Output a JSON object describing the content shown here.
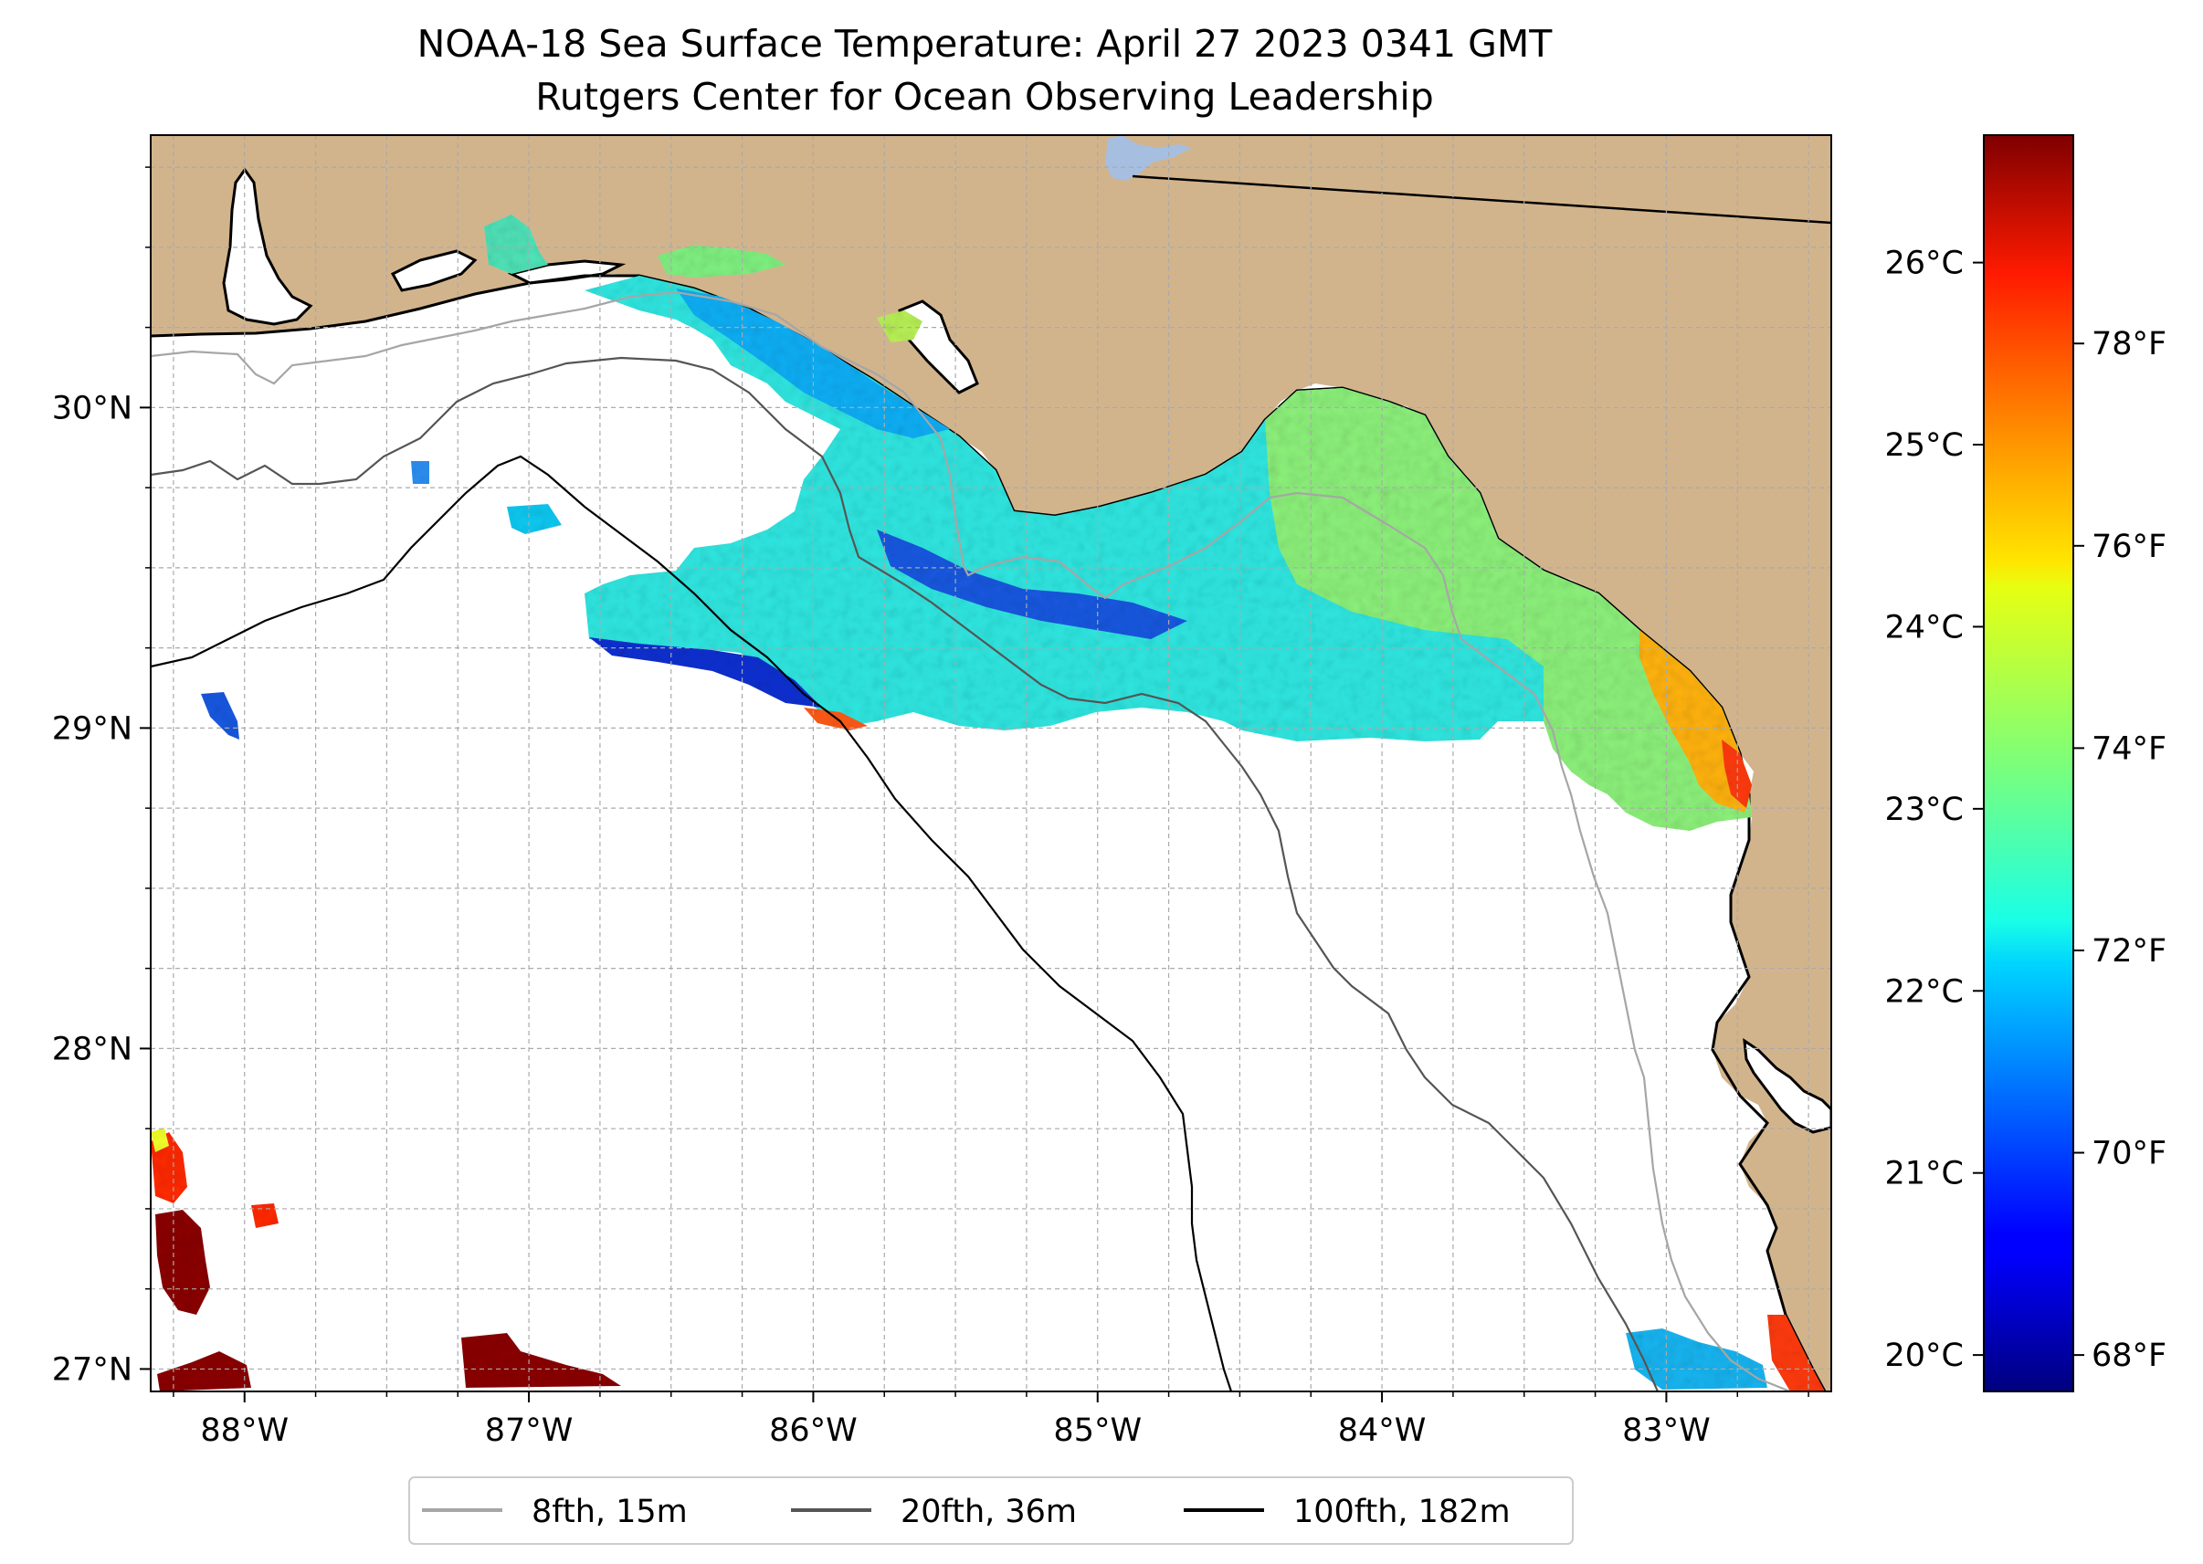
{
  "title": {
    "line1": "NOAA-18 Sea Surface Temperature: April 27 2023 0341 GMT",
    "line2": "Rutgers Center for Ocean Observing Leadership"
  },
  "map": {
    "lon_range": [
      -88.33,
      -82.42
    ],
    "lat_range": [
      26.93,
      30.85
    ],
    "lon_ticks": [
      {
        "value": -88,
        "label": "88°W"
      },
      {
        "value": -87,
        "label": "87°W"
      },
      {
        "value": -86,
        "label": "86°W"
      },
      {
        "value": -85,
        "label": "85°W"
      },
      {
        "value": -84,
        "label": "84°W"
      },
      {
        "value": -83,
        "label": "83°W"
      }
    ],
    "lat_ticks": [
      {
        "value": 27,
        "label": "27°N"
      },
      {
        "value": 28,
        "label": "28°N"
      },
      {
        "value": 29,
        "label": "29°N"
      },
      {
        "value": 30,
        "label": "30°N"
      }
    ],
    "grid": true,
    "colors": {
      "land": "#d2b48c",
      "ocean": "#ffffff",
      "lake": "#a6bfe0",
      "coast": "#000000"
    }
  },
  "colorbar": {
    "colormap": "jet",
    "range_c": [
      19.8,
      26.7
    ],
    "celsius_ticks": [
      {
        "value": 20,
        "label": "20°C"
      },
      {
        "value": 21,
        "label": "21°C"
      },
      {
        "value": 22,
        "label": "22°C"
      },
      {
        "value": 23,
        "label": "23°C"
      },
      {
        "value": 24,
        "label": "24°C"
      },
      {
        "value": 25,
        "label": "25°C"
      },
      {
        "value": 26,
        "label": "26°C"
      }
    ],
    "fahrenheit_ticks": [
      {
        "value": 68,
        "label": "68°F"
      },
      {
        "value": 70,
        "label": "70°F"
      },
      {
        "value": 72,
        "label": "72°F"
      },
      {
        "value": 74,
        "label": "74°F"
      },
      {
        "value": 76,
        "label": "76°F"
      },
      {
        "value": 78,
        "label": "78°F"
      }
    ]
  },
  "legend": {
    "placement": "bottom-center",
    "items": [
      {
        "label": "8fth, 15m",
        "color": "#a6a6a6"
      },
      {
        "label": "20fth, 36m",
        "color": "#555555"
      },
      {
        "label": "100fth, 182m",
        "color": "#000000"
      }
    ]
  }
}
